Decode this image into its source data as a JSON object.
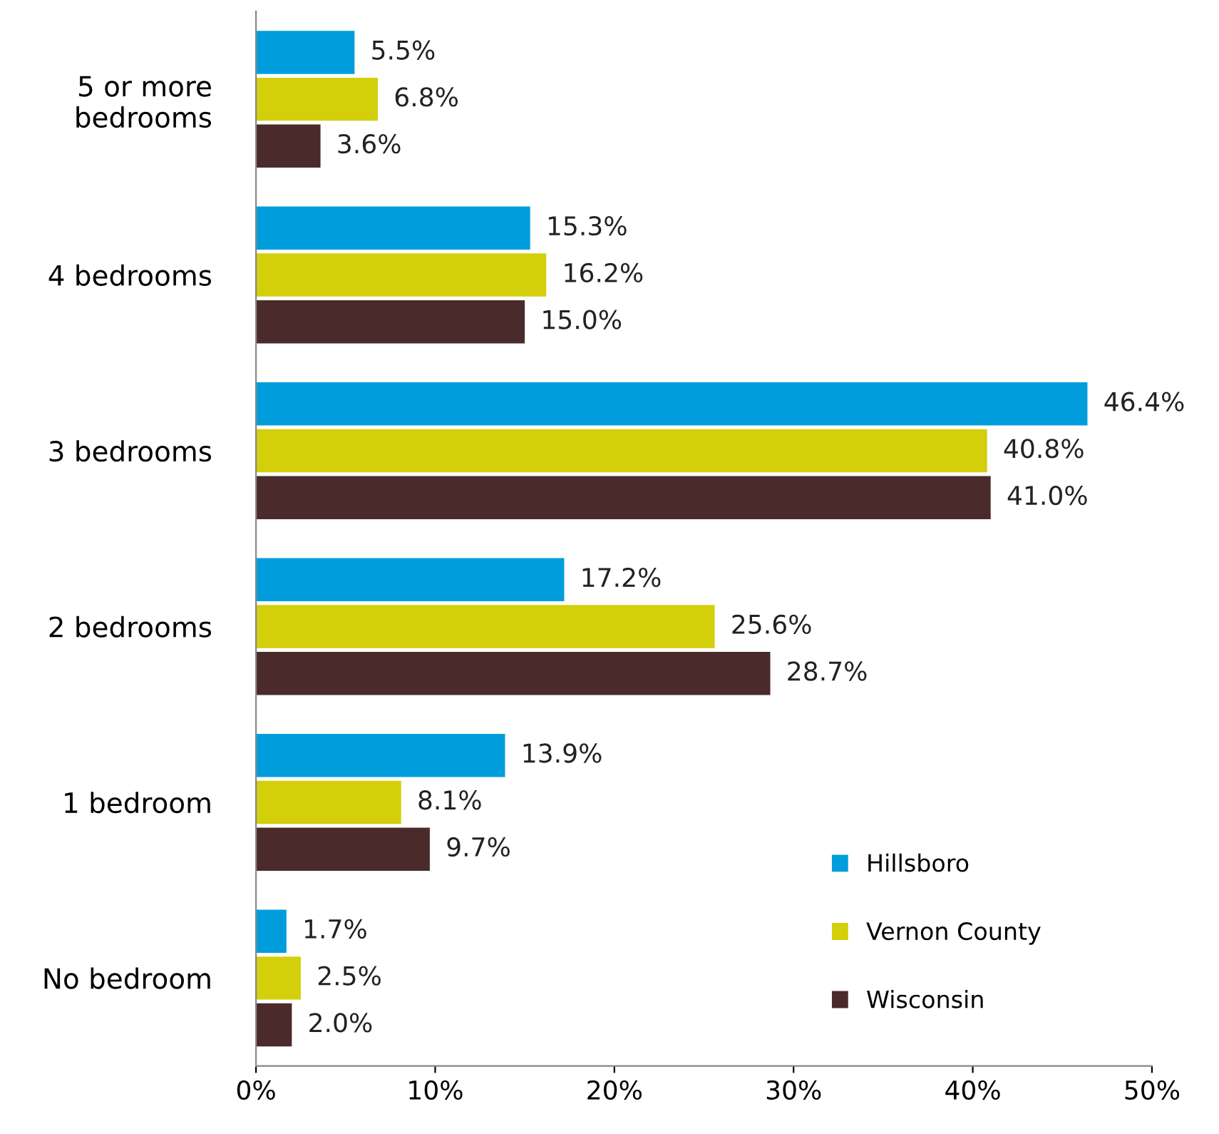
{
  "chart_data": {
    "type": "bar",
    "orientation": "horizontal",
    "categories": [
      "5 or more\nbedrooms",
      "4 bedrooms",
      "3 bedrooms",
      "2 bedrooms",
      "1 bedroom",
      "No bedroom"
    ],
    "series": [
      {
        "name": "Hillsboro",
        "color": "#009ddc",
        "values": [
          5.5,
          15.3,
          46.4,
          17.2,
          13.9,
          1.7
        ],
        "value_labels": [
          "5.5%",
          "15.3%",
          "46.4%",
          "17.2%",
          "13.9%",
          "1.7%"
        ]
      },
      {
        "name": "Vernon County",
        "color": "#d3cf0a",
        "values": [
          6.8,
          16.2,
          40.8,
          25.6,
          8.1,
          2.5
        ],
        "value_labels": [
          "6.8%",
          "16.2%",
          "40.8%",
          "25.6%",
          "8.1%",
          "2.5%"
        ]
      },
      {
        "name": "Wisconsin",
        "color": "#4b2a2c",
        "values": [
          3.6,
          15.0,
          41.0,
          28.7,
          9.7,
          2.0
        ],
        "value_labels": [
          "3.6%",
          "15.0%",
          "41.0%",
          "28.7%",
          "9.7%",
          "2.0%"
        ]
      }
    ],
    "xlim": [
      0,
      50
    ],
    "xticks": [
      {
        "value": 0,
        "label": "0%"
      },
      {
        "value": 10,
        "label": "10%"
      },
      {
        "value": 20,
        "label": "20%"
      },
      {
        "value": 30,
        "label": "30%"
      },
      {
        "value": 40,
        "label": "40%"
      },
      {
        "value": 50,
        "label": "50%"
      }
    ],
    "grid": false,
    "legend": "bottom right"
  }
}
